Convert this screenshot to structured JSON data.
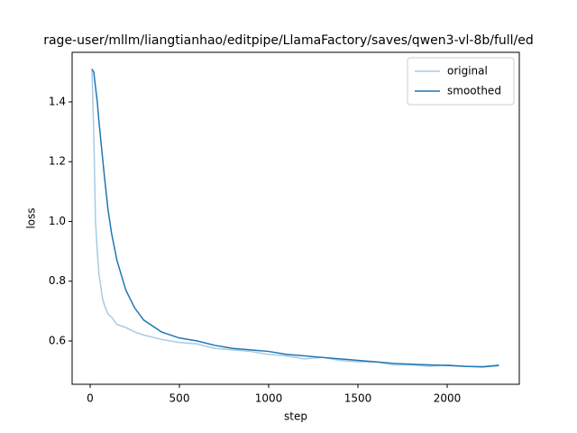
{
  "chart_data": {
    "type": "line",
    "title": "rage-user/mllm/liangtianhao/editpipe/LlamaFactory/saves/qwen3-vl-8b/full/ed",
    "x_label": "step",
    "y_label": "loss",
    "x": [
      10,
      20,
      30,
      40,
      50,
      60,
      70,
      80,
      100,
      120,
      150,
      200,
      250,
      300,
      400,
      500,
      600,
      700,
      800,
      900,
      1000,
      1100,
      1200,
      1300,
      1400,
      1500,
      1600,
      1700,
      1800,
      1900,
      2000,
      2100,
      2200,
      2290
    ],
    "series": [
      {
        "name": "original",
        "color": "#a6cbe5",
        "values": [
          1.51,
          1.3,
          1.0,
          0.9,
          0.82,
          0.78,
          0.74,
          0.72,
          0.69,
          0.68,
          0.655,
          0.645,
          0.63,
          0.62,
          0.605,
          0.595,
          0.59,
          0.575,
          0.57,
          0.565,
          0.555,
          0.55,
          0.54,
          0.545,
          0.535,
          0.53,
          0.53,
          0.52,
          0.52,
          0.515,
          0.52,
          0.515,
          0.515,
          0.52
        ]
      },
      {
        "name": "smoothed",
        "color": "#1f77b4",
        "values": [
          1.51,
          1.5,
          1.45,
          1.4,
          1.33,
          1.27,
          1.21,
          1.15,
          1.04,
          0.96,
          0.87,
          0.77,
          0.71,
          0.67,
          0.63,
          0.61,
          0.6,
          0.585,
          0.575,
          0.57,
          0.565,
          0.555,
          0.55,
          0.545,
          0.54,
          0.535,
          0.53,
          0.525,
          0.522,
          0.52,
          0.518,
          0.515,
          0.513,
          0.518
        ]
      }
    ],
    "xlim": [
      -101,
      2404
    ],
    "xticks": [
      0,
      500,
      1000,
      1500,
      2000
    ],
    "ylim": [
      0.455,
      1.566
    ],
    "yticks": [
      0.6,
      0.8,
      {
        "value": 1,
        "label": "1.0"
      },
      1.2,
      1.4
    ],
    "grid": false,
    "legend": "upper right"
  }
}
